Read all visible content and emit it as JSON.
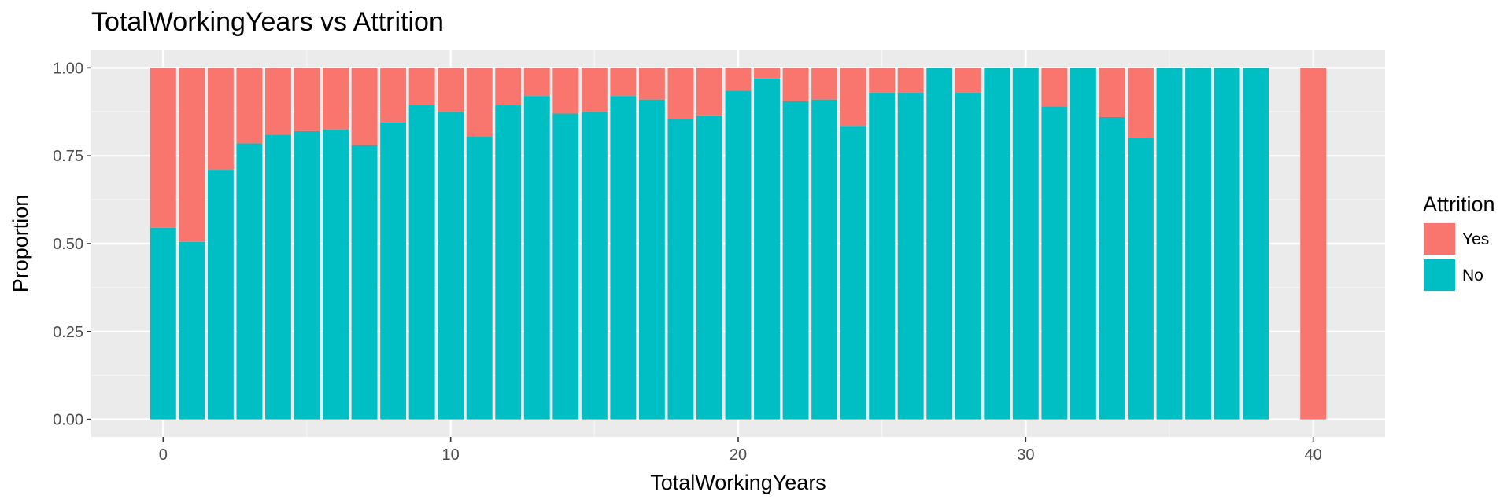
{
  "chart_data": {
    "type": "bar",
    "stacked": true,
    "title": "TotalWorkingYears vs Attrition",
    "xlabel": "TotalWorkingYears",
    "ylabel": "Proportion",
    "xlim": [
      -2.5,
      42.5
    ],
    "ylim": [
      -0.05,
      1.05
    ],
    "x_ticks": [
      0,
      10,
      20,
      30,
      40
    ],
    "x_tick_labels": [
      "0",
      "10",
      "20",
      "30",
      "40"
    ],
    "y_ticks": [
      0,
      0.25,
      0.5,
      0.75,
      1.0
    ],
    "y_tick_labels": [
      "0.00",
      "0.25",
      "0.50",
      "0.75",
      "1.00"
    ],
    "grid": true,
    "legend": {
      "title": "Attrition",
      "position": "right",
      "entries": [
        {
          "label": "Yes",
          "color": "#F8766D"
        },
        {
          "label": "No",
          "color": "#00BFC4"
        }
      ]
    },
    "x": [
      0,
      1,
      2,
      3,
      4,
      5,
      6,
      7,
      8,
      9,
      10,
      11,
      12,
      13,
      14,
      15,
      16,
      17,
      18,
      19,
      20,
      21,
      22,
      23,
      24,
      25,
      26,
      27,
      28,
      29,
      30,
      31,
      32,
      33,
      34,
      35,
      36,
      37,
      38,
      40
    ],
    "series": [
      {
        "name": "No",
        "color": "#00BFC4",
        "values": [
          0.545,
          0.505,
          0.71,
          0.785,
          0.81,
          0.82,
          0.825,
          0.78,
          0.845,
          0.895,
          0.875,
          0.805,
          0.895,
          0.92,
          0.87,
          0.875,
          0.92,
          0.91,
          0.855,
          0.865,
          0.935,
          0.97,
          0.905,
          0.91,
          0.835,
          0.93,
          0.93,
          1.0,
          0.93,
          1.0,
          1.0,
          0.89,
          1.0,
          0.86,
          0.8,
          1.0,
          1.0,
          1.0,
          1.0,
          0.0
        ]
      },
      {
        "name": "Yes",
        "color": "#F8766D",
        "values": [
          0.455,
          0.495,
          0.29,
          0.215,
          0.19,
          0.18,
          0.175,
          0.22,
          0.155,
          0.105,
          0.125,
          0.195,
          0.105,
          0.08,
          0.13,
          0.125,
          0.08,
          0.09,
          0.145,
          0.135,
          0.065,
          0.03,
          0.095,
          0.09,
          0.165,
          0.07,
          0.07,
          0.0,
          0.07,
          0.0,
          0.0,
          0.11,
          0.0,
          0.14,
          0.2,
          0.0,
          0.0,
          0.0,
          0.0,
          1.0
        ]
      }
    ]
  },
  "colors": {
    "panel_background": "#EBEBEB",
    "grid_major": "#FFFFFF",
    "yes": "#F8766D",
    "no": "#00BFC4"
  }
}
